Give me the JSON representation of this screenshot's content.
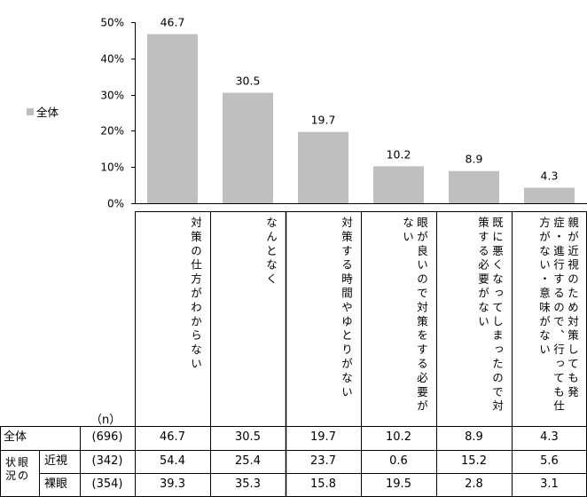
{
  "chart_data": {
    "type": "bar",
    "legend": "全体",
    "ylim": [
      0,
      50
    ],
    "yticks": [
      "0%",
      "10%",
      "20%",
      "30%",
      "40%",
      "50%"
    ],
    "categories": [
      "対策の仕方がわからない",
      "なんとなく",
      "対策する時間やゆとりがない",
      "眼が良いので対策をする必要がない",
      "既に悪くなってしまったので対策する必要がない",
      "親が近視のため対策しても発症・進行するので、行っても仕方がない・意味がない"
    ],
    "values": [
      46.7,
      30.5,
      19.7,
      10.2,
      8.9,
      4.3
    ],
    "value_labels": [
      "46.7",
      "30.5",
      "19.7",
      "10.2",
      "8.9",
      "4.3"
    ],
    "color": "#bfbfbf"
  },
  "table": {
    "n_header": "（n）",
    "group_label_line1": "状眼",
    "group_label_line2": "況の",
    "rows": [
      {
        "label": "全体",
        "n": "(696)",
        "values": [
          "46.7",
          "30.5",
          "19.7",
          "10.2",
          "8.9",
          "4.3"
        ]
      },
      {
        "label": "近視",
        "n": "(342)",
        "values": [
          "54.4",
          "25.4",
          "23.7",
          "0.6",
          "15.2",
          "5.6"
        ]
      },
      {
        "label": "裸眼",
        "n": "(354)",
        "values": [
          "39.3",
          "35.3",
          "15.8",
          "19.5",
          "2.8",
          "3.1"
        ]
      }
    ]
  }
}
